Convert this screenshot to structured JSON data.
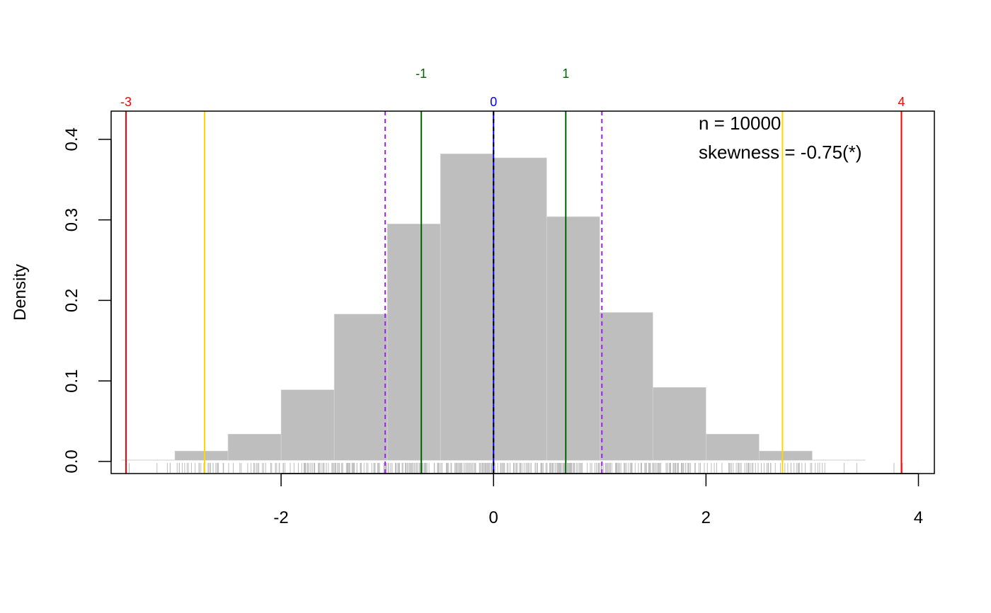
{
  "chart_data": {
    "type": "bar",
    "title": "",
    "xlabel": "",
    "ylabel": "Density",
    "xlim": [
      -3.6,
      4.15
    ],
    "ylim": [
      -0.015,
      0.435
    ],
    "xticks": [
      "-2",
      "0",
      "2",
      "4"
    ],
    "xtick_values": [
      -2,
      0,
      2,
      4
    ],
    "yticks": [
      "0.0",
      "0.1",
      "0.2",
      "0.3",
      "0.4"
    ],
    "ytick_values": [
      0,
      0.1,
      0.2,
      0.3,
      0.4
    ],
    "bar_color": "#bebebe",
    "bins": [
      {
        "x0": -3.5,
        "x1": -3.0,
        "density": 0.002
      },
      {
        "x0": -3.0,
        "x1": -2.5,
        "density": 0.013
      },
      {
        "x0": -2.5,
        "x1": -2.0,
        "density": 0.034
      },
      {
        "x0": -2.0,
        "x1": -1.5,
        "density": 0.089
      },
      {
        "x0": -1.5,
        "x1": -1.0,
        "density": 0.183
      },
      {
        "x0": -1.0,
        "x1": -0.5,
        "density": 0.295
      },
      {
        "x0": -0.5,
        "x1": 0.0,
        "density": 0.382
      },
      {
        "x0": 0.0,
        "x1": 0.5,
        "density": 0.377
      },
      {
        "x0": 0.5,
        "x1": 1.0,
        "density": 0.304
      },
      {
        "x0": 1.0,
        "x1": 1.5,
        "density": 0.185
      },
      {
        "x0": 1.5,
        "x1": 2.0,
        "density": 0.092
      },
      {
        "x0": 2.0,
        "x1": 2.5,
        "density": 0.034
      },
      {
        "x0": 2.5,
        "x1": 3.0,
        "density": 0.013
      },
      {
        "x0": 3.0,
        "x1": 3.5,
        "density": 0.002
      },
      {
        "x0": 3.5,
        "x1": 4.0,
        "density": 0.0003
      }
    ],
    "vertical_lines": [
      {
        "x": -3.46,
        "color": "#ff0000",
        "dashed": false,
        "label": "-3"
      },
      {
        "x": -2.72,
        "color": "#ffd700",
        "dashed": false,
        "label": ""
      },
      {
        "x": -1.02,
        "color": "#a020f0",
        "dashed": true,
        "label": ""
      },
      {
        "x": -0.68,
        "color": "#006400",
        "dashed": false,
        "label": "-1"
      },
      {
        "x": 0.0,
        "color": "#0000ff",
        "dashed": false,
        "label": "0"
      },
      {
        "x": 0.0,
        "color": "#000000",
        "dashed": true,
        "label": ""
      },
      {
        "x": 0.68,
        "color": "#006400",
        "dashed": false,
        "label": "1"
      },
      {
        "x": 1.02,
        "color": "#a020f0",
        "dashed": true,
        "label": ""
      },
      {
        "x": 2.72,
        "color": "#ffd700",
        "dashed": false,
        "label": ""
      },
      {
        "x": 3.84,
        "color": "#ff0000",
        "dashed": false,
        "label": "4"
      }
    ],
    "annotations": [
      "n = 10000",
      "skewness = -0.75(*)"
    ],
    "rug": {
      "color": "#bebebe",
      "ranges": [
        {
          "from": -3.2,
          "to": -1.8,
          "count": 60
        },
        {
          "from": -1.8,
          "to": 1.8,
          "count": 400
        },
        {
          "from": 1.8,
          "to": 3.15,
          "count": 65
        }
      ],
      "outliers": [
        -3.43,
        3.3,
        3.42,
        3.77,
        3.85
      ]
    },
    "grid": false,
    "legend": "none"
  }
}
